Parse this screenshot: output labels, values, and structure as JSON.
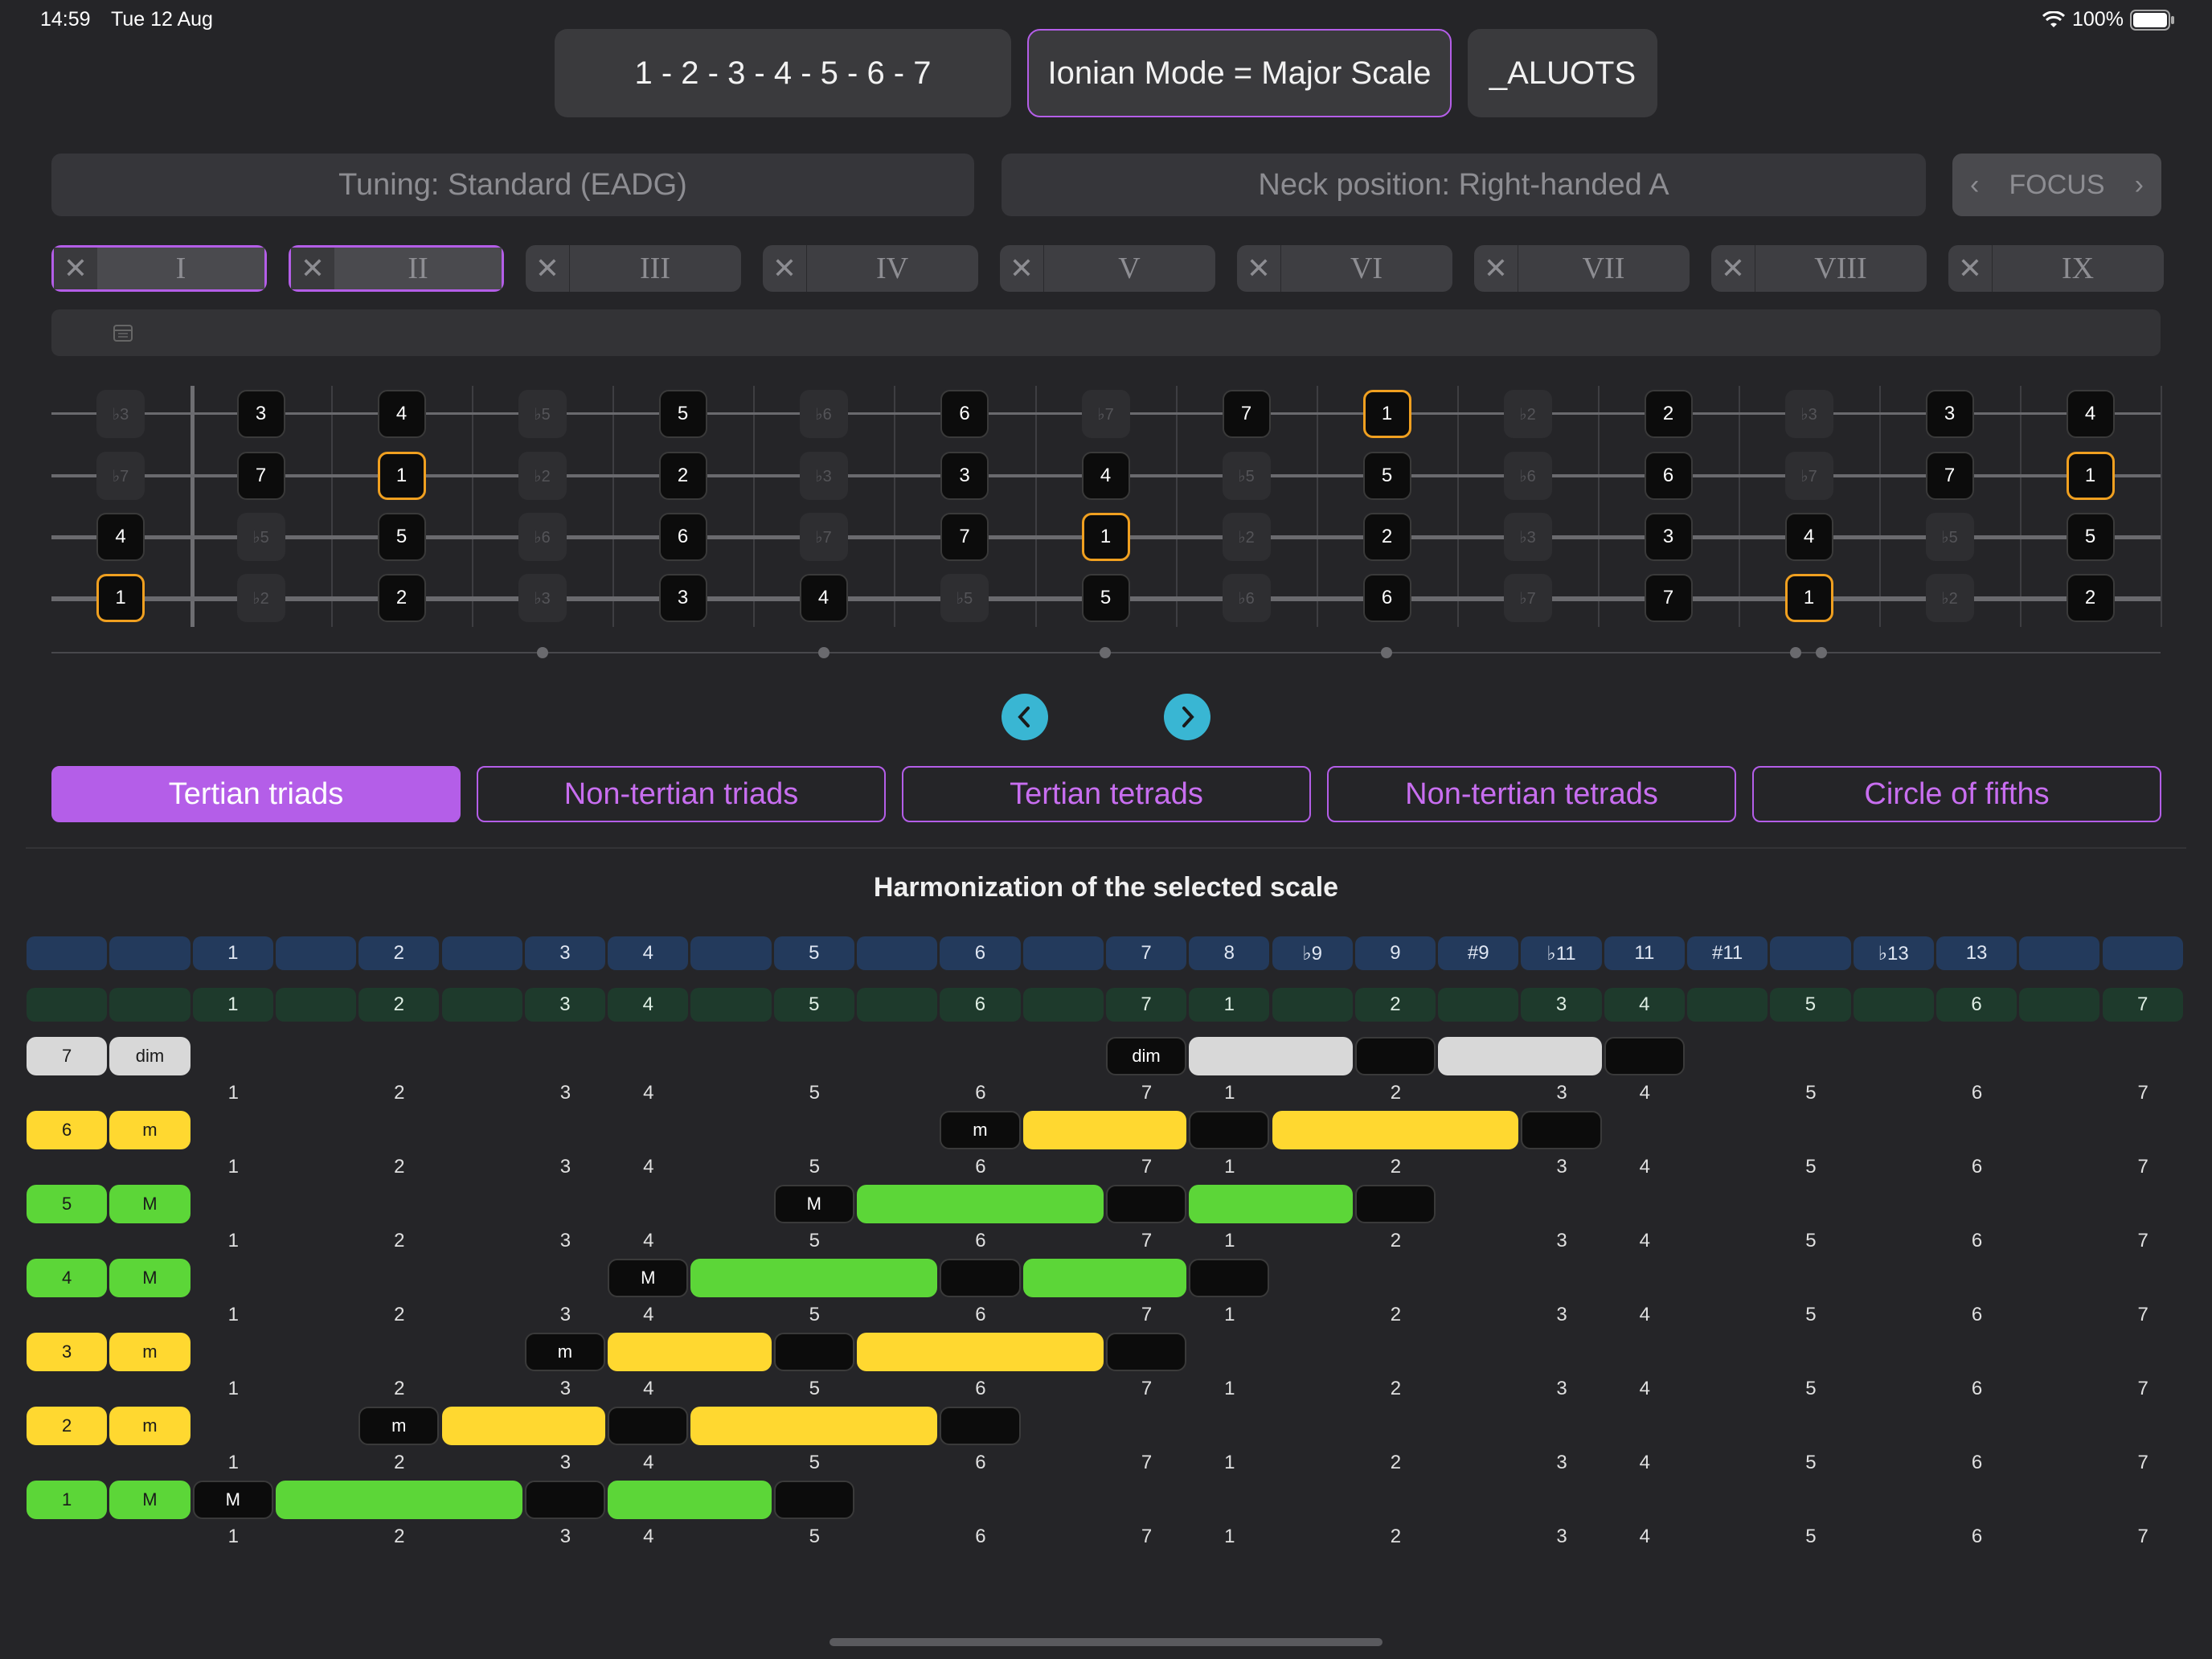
{
  "status": {
    "time": "14:59",
    "date": "Tue 12 Aug",
    "battery": "100%"
  },
  "top": {
    "degrees": "1 - 2 - 3 - 4 - 5 - 6 - 7",
    "mode": "Ionian Mode = Major Scale",
    "name": "_ALUOTS"
  },
  "fields": {
    "tuning": "Tuning: Standard (EADG)",
    "neck": "Neck position: Right-handed A",
    "focus": "FOCUS"
  },
  "positions": [
    "I",
    "II",
    "III",
    "IV",
    "V",
    "VI",
    "VII",
    "VIII",
    "IX"
  ],
  "fretboard": {
    "strings": [
      [
        "♭3",
        "3",
        "4",
        "♭5",
        "5",
        "♭6",
        "6",
        "♭7",
        "7",
        "1",
        "♭2",
        "2",
        "♭3",
        "3",
        "4"
      ],
      [
        "♭7",
        "7",
        "1",
        "♭2",
        "2",
        "♭3",
        "3",
        "4",
        "♭5",
        "5",
        "♭6",
        "6",
        "♭7",
        "7",
        "1"
      ],
      [
        "4",
        "♭5",
        "5",
        "♭6",
        "6",
        "♭7",
        "7",
        "1",
        "♭2",
        "2",
        "♭3",
        "3",
        "4",
        "♭5",
        "5"
      ],
      [
        "1",
        "♭2",
        "2",
        "♭3",
        "3",
        "4",
        "♭5",
        "5",
        "♭6",
        "6",
        "♭7",
        "7",
        "1",
        "♭2",
        "2"
      ]
    ]
  },
  "tabs": [
    "Tertian triads",
    "Non-tertian triads",
    "Tertian tetrads",
    "Non-tertian tetrads",
    "Circle of fifths"
  ],
  "harmonization": {
    "title": "Harmonization of the selected scale",
    "interval_row": [
      "",
      "",
      "1",
      "",
      "2",
      "",
      "3",
      "4",
      "",
      "5",
      "",
      "6",
      "",
      "7",
      "8",
      "♭9",
      "9",
      "#9",
      "♭11",
      "11",
      "#11",
      "",
      "♭13",
      "13",
      "",
      ""
    ],
    "degree_row": [
      "",
      "",
      "1",
      "",
      "2",
      "",
      "3",
      "4",
      "",
      "5",
      "",
      "6",
      "",
      "7",
      "1",
      "",
      "2",
      "",
      "3",
      "4",
      "",
      "5",
      "",
      "6",
      "",
      "7"
    ],
    "scale_numbers": [
      "1",
      "2",
      "3",
      "4",
      "5",
      "6",
      "7",
      "1",
      "2",
      "3",
      "4",
      "5",
      "6",
      "7"
    ],
    "chords": [
      {
        "degree": "7",
        "quality": "dim"
      },
      {
        "degree": "6",
        "quality": "m"
      },
      {
        "degree": "5",
        "quality": "M"
      },
      {
        "degree": "4",
        "quality": "M"
      },
      {
        "degree": "3",
        "quality": "m"
      },
      {
        "degree": "2",
        "quality": "m"
      },
      {
        "degree": "1",
        "quality": "M"
      }
    ]
  },
  "colors": {
    "accent": "#b45ee8",
    "major": "#5cd638",
    "minor": "#ffd830",
    "diminished": "#d8d8d8",
    "root_outline": "#f0a020",
    "nav": "#39b6d3"
  }
}
